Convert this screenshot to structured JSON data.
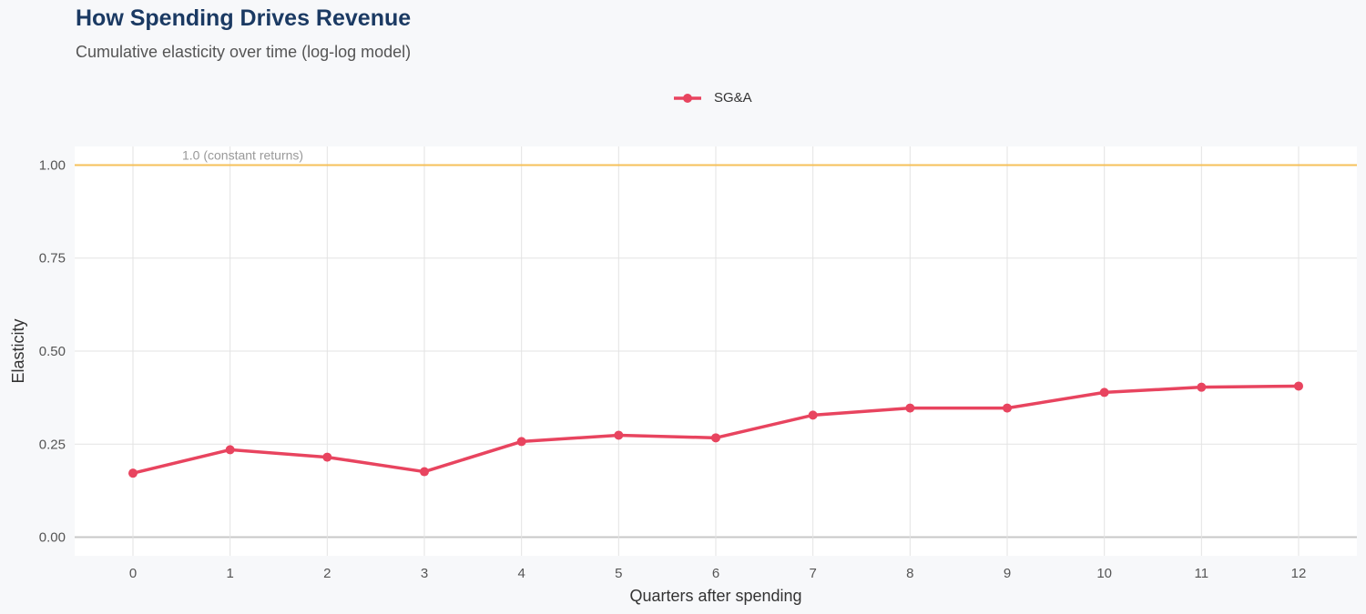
{
  "title": "How Spending Drives Revenue",
  "subtitle": "Cumulative elasticity over time (log-log model)",
  "chart_data": {
    "type": "line",
    "xlabel": "Quarters after spending",
    "ylabel": "Elasticity",
    "x": [
      0,
      1,
      2,
      3,
      4,
      5,
      6,
      7,
      8,
      9,
      10,
      11,
      12
    ],
    "series": [
      {
        "name": "SG&A",
        "color": "#e8445f",
        "values": [
          0.172,
          0.235,
          0.215,
          0.176,
          0.257,
          0.274,
          0.267,
          0.328,
          0.347,
          0.347,
          0.389,
          0.403,
          0.406
        ]
      }
    ],
    "yticks": [
      "0.00",
      "0.25",
      "0.50",
      "0.75",
      "1.00"
    ],
    "ytick_values": [
      0,
      0.25,
      0.5,
      0.75,
      1.0
    ],
    "xticks": [
      "0",
      "1",
      "2",
      "3",
      "4",
      "5",
      "6",
      "7",
      "8",
      "9",
      "10",
      "11",
      "12"
    ],
    "ylim": [
      -0.05,
      1.05
    ],
    "xlim": [
      -0.6,
      12.6
    ],
    "reference_line": {
      "value": 1.0,
      "label": "1.0 (constant returns)",
      "color": "#f5c05a"
    },
    "legend": "top",
    "grid": true
  }
}
